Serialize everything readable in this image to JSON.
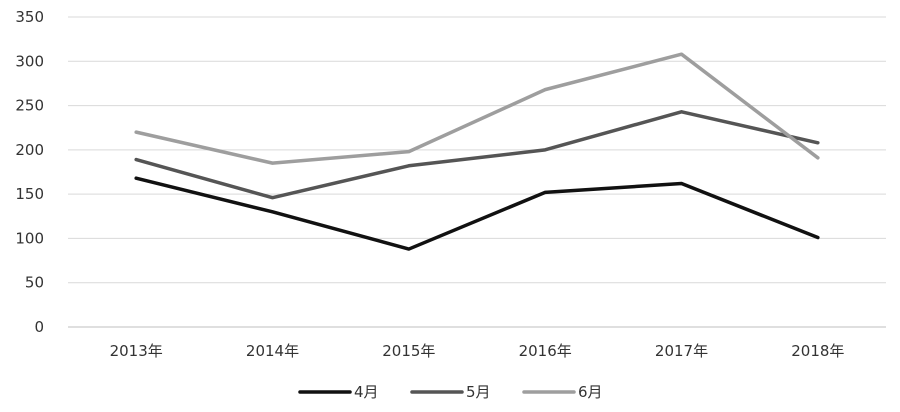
{
  "chart_data": {
    "type": "line",
    "categories": [
      "2013年",
      "2014年",
      "2015年",
      "2016年",
      "2017年",
      "2018年"
    ],
    "series": [
      {
        "name": "4月",
        "values": [
          168,
          130,
          88,
          152,
          162,
          101
        ],
        "color": "#111111"
      },
      {
        "name": "5月",
        "values": [
          189,
          146,
          182,
          200,
          243,
          208
        ],
        "color": "#555555"
      },
      {
        "name": "6月",
        "values": [
          220,
          185,
          198,
          268,
          308,
          191
        ],
        "color": "#9e9e9e"
      }
    ],
    "y_ticks": [
      "0",
      "50",
      "100",
      "150",
      "200",
      "250",
      "300",
      "350"
    ],
    "ylim": [
      0,
      350
    ],
    "grid": true,
    "legend_position": "bottom"
  }
}
